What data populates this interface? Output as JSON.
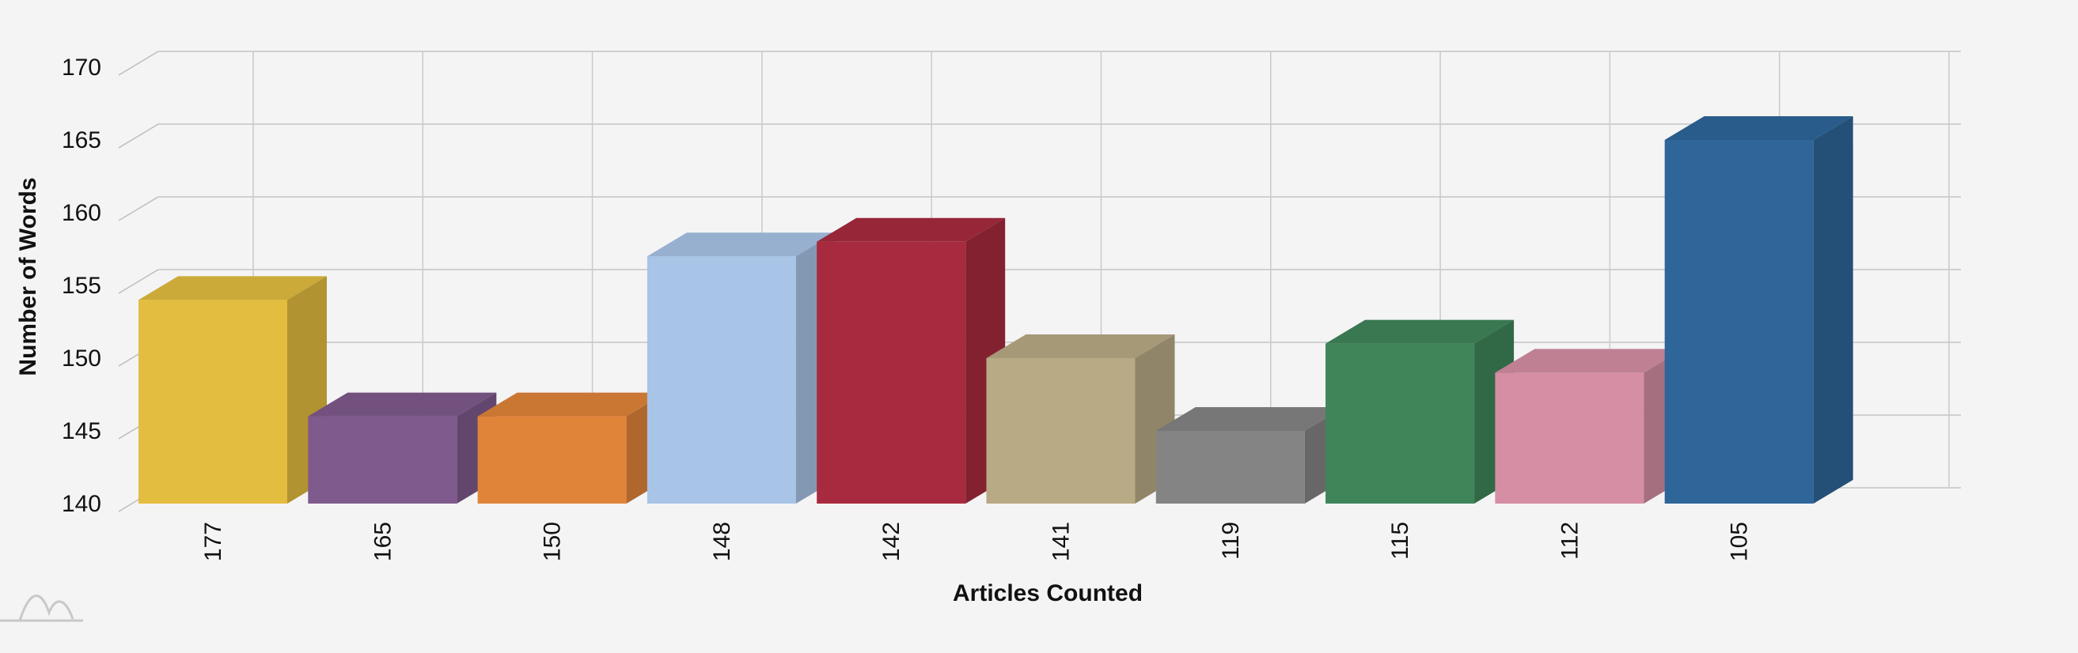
{
  "chart_data": {
    "type": "bar",
    "title": "",
    "xlabel": "Articles Counted",
    "ylabel": "Number of Words",
    "ylim": [
      140,
      170
    ],
    "yticks": [
      140,
      145,
      150,
      155,
      160,
      165,
      170
    ],
    "categories": [
      "177",
      "165",
      "150",
      "148",
      "142",
      "141",
      "119",
      "115",
      "112",
      "105"
    ],
    "values": [
      154,
      146,
      146,
      157,
      158,
      150,
      145,
      151,
      149,
      165
    ],
    "colors": [
      "#e3bd3f",
      "#7f5a8c",
      "#e0843a",
      "#a8c4e6",
      "#a82a3e",
      "#b8aa85",
      "#848484",
      "#3f855a",
      "#d58ea4",
      "#2e6699"
    ],
    "grid": true,
    "legend": "none"
  }
}
